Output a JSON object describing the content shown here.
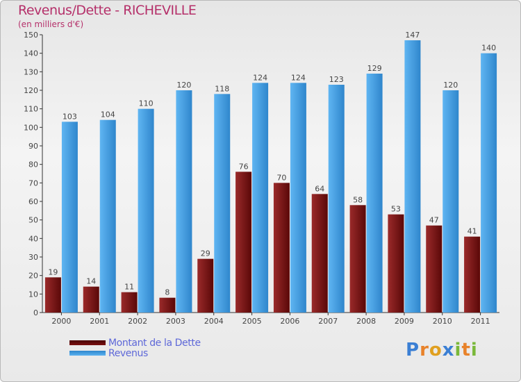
{
  "title": "Revenus/Dette - RICHEVILLE",
  "subtitle": "(en milliers d'€)",
  "watermark": "Proxiti",
  "chart_data": {
    "type": "bar",
    "categories": [
      "2000",
      "2001",
      "2002",
      "2003",
      "2004",
      "2005",
      "2006",
      "2007",
      "2008",
      "2009",
      "2010",
      "2011"
    ],
    "series": [
      {
        "name": "Montant de la Dette",
        "color": "#7a1010",
        "values": [
          19,
          14,
          11,
          8,
          29,
          76,
          70,
          64,
          58,
          53,
          47,
          41
        ]
      },
      {
        "name": "Revenus",
        "color": "#4aa3e6",
        "values": [
          103,
          104,
          110,
          120,
          118,
          124,
          124,
          123,
          129,
          147,
          120,
          140
        ]
      }
    ],
    "ylim": [
      0,
      150
    ],
    "yticks": [
      0,
      10,
      20,
      30,
      40,
      50,
      60,
      70,
      80,
      90,
      100,
      110,
      120,
      130,
      140,
      150
    ],
    "grid": false,
    "legend": "bottom-left",
    "xlabel": "",
    "ylabel": ""
  }
}
